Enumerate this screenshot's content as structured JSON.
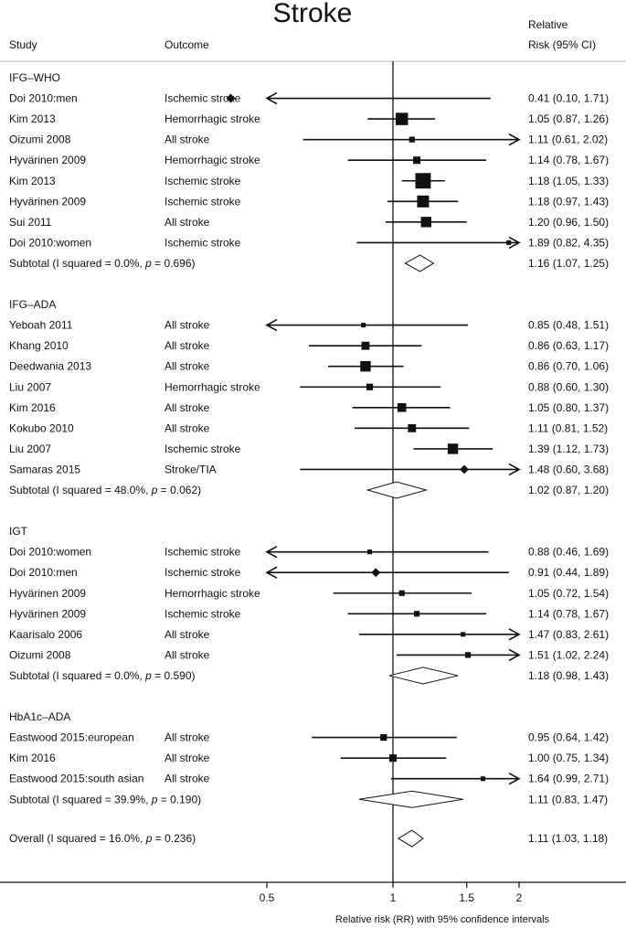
{
  "chart_data": {
    "type": "forest",
    "title": "Stroke",
    "headers": {
      "study": "Study",
      "outcome": "Outcome",
      "rr_line1": "Relative",
      "rr_line2": "Risk (95% CI)"
    },
    "xlabel": "Relative risk (RR) with 95% confidence intervals",
    "x_scale": "log",
    "xlim": [
      0.35,
      2.3
    ],
    "x_ticks": [
      {
        "value": 0.5,
        "label": "0.5"
      },
      {
        "value": 1,
        "label": "1"
      },
      {
        "value": 1.5,
        "label": "1.5"
      },
      {
        "value": 2,
        "label": "2"
      }
    ],
    "null_line": 1,
    "groups": [
      {
        "name": "IFG–WHO",
        "studies": [
          {
            "study": "Doi 2010:men",
            "outcome": "Ischemic stroke",
            "rr": 0.41,
            "lo": 0.1,
            "hi": 1.71,
            "ci_text": "0.41 (0.10, 1.71)",
            "weight": 1
          },
          {
            "study": "Kim 2013",
            "outcome": "Hemorrhagic stroke",
            "rr": 1.05,
            "lo": 0.87,
            "hi": 1.26,
            "ci_text": "1.05 (0.87, 1.26)",
            "weight": 14
          },
          {
            "study": "Oizumi 2008",
            "outcome": "All stroke",
            "rr": 1.11,
            "lo": 0.61,
            "hi": 2.02,
            "ci_text": "1.11 (0.61, 2.02)",
            "weight": 3
          },
          {
            "study": "Hyvärinen 2009",
            "outcome": "Hemorrhagic stroke",
            "rr": 1.14,
            "lo": 0.78,
            "hi": 1.67,
            "ci_text": "1.14 (0.78, 1.67)",
            "weight": 5
          },
          {
            "study": "Kim 2013",
            "outcome": "Ischemic stroke",
            "rr": 1.18,
            "lo": 1.05,
            "hi": 1.33,
            "ci_text": "1.18 (1.05, 1.33)",
            "weight": 22
          },
          {
            "study": "Hyvärinen 2009",
            "outcome": "Ischemic stroke",
            "rr": 1.18,
            "lo": 0.97,
            "hi": 1.43,
            "ci_text": "1.18 (0.97, 1.43)",
            "weight": 13
          },
          {
            "study": "Sui 2011",
            "outcome": "All stroke",
            "rr": 1.2,
            "lo": 0.96,
            "hi": 1.5,
            "ci_text": "1.20 (0.96, 1.50)",
            "weight": 10
          },
          {
            "study": "Doi 2010:women",
            "outcome": "Ischemic stroke",
            "rr": 1.89,
            "lo": 0.82,
            "hi": 4.35,
            "ci_text": "1.89 (0.82, 4.35)",
            "weight": 2
          }
        ],
        "subtotal": {
          "label": "Subtotal (I squared = 0.0%, ",
          "p_label": "p",
          "p_rest": " = 0.696)",
          "rr": 1.16,
          "lo": 1.07,
          "hi": 1.25,
          "ci_text": "1.16 (1.07, 1.25)"
        }
      },
      {
        "name": "IFG–ADA",
        "studies": [
          {
            "study": "Yeboah 2011",
            "outcome": "All stroke",
            "rr": 0.85,
            "lo": 0.48,
            "hi": 1.51,
            "ci_text": "0.85 (0.48, 1.51)",
            "weight": 2
          },
          {
            "study": "Khang 2010",
            "outcome": "All stroke",
            "rr": 0.86,
            "lo": 0.63,
            "hi": 1.17,
            "ci_text": "0.86 (0.63, 1.17)",
            "weight": 6
          },
          {
            "study": "Deedwania 2013",
            "outcome": "All stroke",
            "rr": 0.86,
            "lo": 0.7,
            "hi": 1.06,
            "ci_text": "0.86 (0.70, 1.06)",
            "weight": 10
          },
          {
            "study": "Liu 2007",
            "outcome": "Hemorrhagic stroke",
            "rr": 0.88,
            "lo": 0.6,
            "hi": 1.3,
            "ci_text": "0.88 (0.60, 1.30)",
            "weight": 4
          },
          {
            "study": "Kim 2016",
            "outcome": "All stroke",
            "rr": 1.05,
            "lo": 0.8,
            "hi": 1.37,
            "ci_text": "1.05 (0.80, 1.37)",
            "weight": 7
          },
          {
            "study": "Kokubo 2010",
            "outcome": "All stroke",
            "rr": 1.11,
            "lo": 0.81,
            "hi": 1.52,
            "ci_text": "1.11 (0.81, 1.52)",
            "weight": 6
          },
          {
            "study": "Liu 2007",
            "outcome": "Ischemic stroke",
            "rr": 1.39,
            "lo": 1.12,
            "hi": 1.73,
            "ci_text": "1.39 (1.12, 1.73)",
            "weight": 10
          },
          {
            "study": "Samaras 2015",
            "outcome": "Stroke/TIA",
            "rr": 1.48,
            "lo": 0.6,
            "hi": 3.68,
            "ci_text": "1.48 (0.60, 3.68)",
            "weight": 1
          }
        ],
        "subtotal": {
          "label": "Subtotal (I squared = 48.0%, ",
          "p_label": "p",
          "p_rest": " = 0.062)",
          "rr": 1.02,
          "lo": 0.87,
          "hi": 1.2,
          "ci_text": "1.02 (0.87, 1.20)"
        }
      },
      {
        "name": "IGT",
        "studies": [
          {
            "study": "Doi 2010:women",
            "outcome": "Ischemic stroke",
            "rr": 0.88,
            "lo": 0.46,
            "hi": 1.69,
            "ci_text": "0.88 (0.46, 1.69)",
            "weight": 2
          },
          {
            "study": "Doi 2010:men",
            "outcome": "Ischemic stroke",
            "rr": 0.91,
            "lo": 0.44,
            "hi": 1.89,
            "ci_text": "0.91 (0.44, 1.89)",
            "weight": 1
          },
          {
            "study": "Hyvärinen 2009",
            "outcome": "Hemorrhagic stroke",
            "rr": 1.05,
            "lo": 0.72,
            "hi": 1.54,
            "ci_text": "1.05 (0.72, 1.54)",
            "weight": 3
          },
          {
            "study": "Hyvärinen 2009",
            "outcome": "Ischemic stroke",
            "rr": 1.14,
            "lo": 0.78,
            "hi": 1.67,
            "ci_text": "1.14 (0.78, 1.67)",
            "weight": 3
          },
          {
            "study": "Kaarisalo 2006",
            "outcome": "All stroke",
            "rr": 1.47,
            "lo": 0.83,
            "hi": 2.61,
            "ci_text": "1.47 (0.83, 2.61)",
            "weight": 2
          },
          {
            "study": "Oizumi 2008",
            "outcome": "All stroke",
            "rr": 1.51,
            "lo": 1.02,
            "hi": 2.24,
            "ci_text": "1.51 (1.02, 2.24)",
            "weight": 3
          }
        ],
        "subtotal": {
          "label": "Subtotal (I squared = 0.0%, ",
          "p_label": "p",
          "p_rest": " = 0.590)",
          "rr": 1.18,
          "lo": 0.98,
          "hi": 1.43,
          "ci_text": "1.18 (0.98, 1.43)"
        }
      },
      {
        "name": "HbA1c–ADA",
        "studies": [
          {
            "study": "Eastwood 2015:european",
            "outcome": "All stroke",
            "rr": 0.95,
            "lo": 0.64,
            "hi": 1.42,
            "ci_text": "0.95 (0.64, 1.42)",
            "weight": 4
          },
          {
            "study": "Kim 2016",
            "outcome": "All stroke",
            "rr": 1.0,
            "lo": 0.75,
            "hi": 1.34,
            "ci_text": "1.00 (0.75, 1.34)",
            "weight": 5
          },
          {
            "study": "Eastwood 2015:south asian",
            "outcome": "All stroke",
            "rr": 1.64,
            "lo": 0.99,
            "hi": 2.71,
            "ci_text": "1.64 (0.99, 2.71)",
            "weight": 2
          }
        ],
        "subtotal": {
          "label": "Subtotal (I squared = 39.9%, ",
          "p_label": "p",
          "p_rest": " = 0.190)",
          "rr": 1.11,
          "lo": 0.83,
          "hi": 1.47,
          "ci_text": "1.11 (0.83, 1.47)"
        }
      }
    ],
    "overall": {
      "label": "Overall (I squared = 16.0%, ",
      "p_label": "p",
      "p_rest": " = 0.236)",
      "rr": 1.11,
      "lo": 1.03,
      "hi": 1.18,
      "ci_text": "1.11 (1.03, 1.18)"
    }
  }
}
